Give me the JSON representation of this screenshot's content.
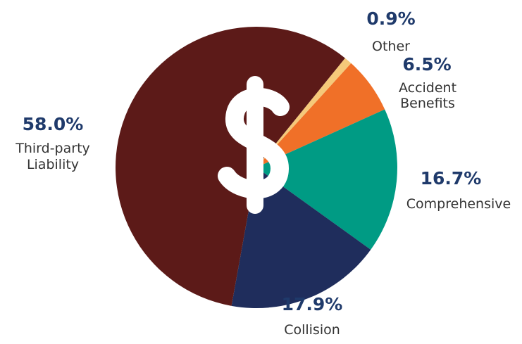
{
  "chart_data": {
    "type": "pie",
    "categories": [
      "Other",
      "Accident Benefits",
      "Comprehensive",
      "Collision",
      "Third-party Liability"
    ],
    "values": [
      0.9,
      6.5,
      16.7,
      17.9,
      58.0
    ],
    "value_labels": [
      "0.9%",
      "6.5%",
      "16.7%",
      "17.9%",
      "58.0%"
    ],
    "colors": [
      "#f5c97a",
      "#f07028",
      "#009b84",
      "#1f2d5c",
      "#5c1a18"
    ],
    "start_angle": 39
  }
}
